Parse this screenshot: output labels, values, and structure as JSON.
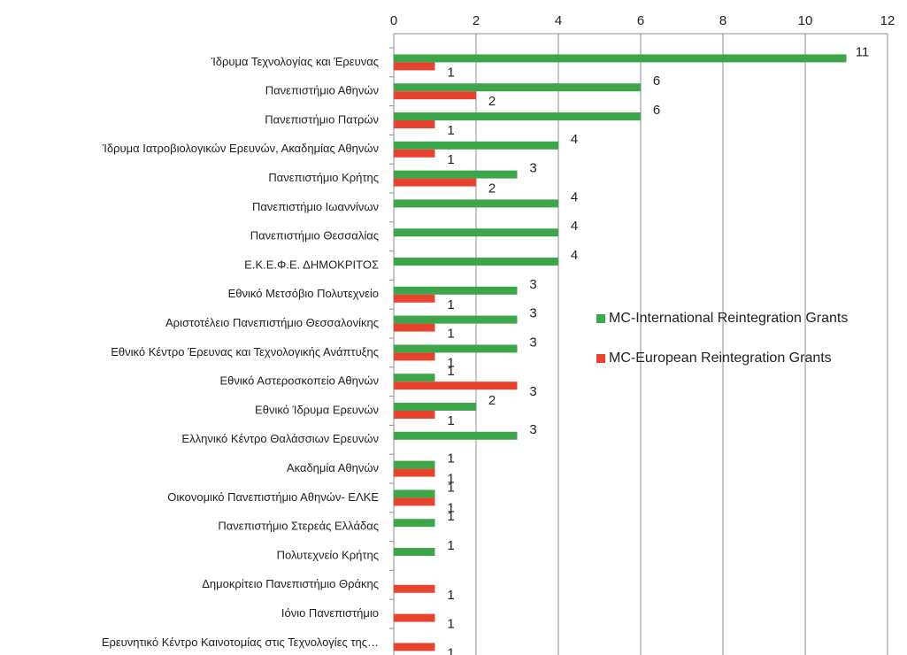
{
  "chart_data": {
    "type": "barh",
    "categories": [
      "Ίδρυμα Τεχνολογίας και Έρευνας",
      "Πανεπιστήμιο Αθηνών",
      "Πανεπιστήμιο Πατρών",
      "Ίδρυμα Ιατροβιολογικών Ερευνών, Ακαδημίας Αθηνών",
      "Πανεπιστήμιο Κρήτης",
      "Πανεπιστήμιο Ιωαννίνων",
      "Πανεπιστήμιο Θεσσαλίας",
      "Ε.Κ.Ε.Φ.Ε. ΔΗΜΟΚΡΙΤΟΣ",
      "Εθνικό Μετσόβιο Πολυτεχνείο",
      "Αριστοτέλειο Πανεπιστήμιο Θεσσαλονίκης",
      "Εθνικό Κέντρο Έρευνας και Τεχνολογικής Ανάπτυξης",
      "Εθνικό Αστεροσκοπείο Αθηνών",
      "Εθνικό Ίδρυμα Ερευνών",
      "Ελληνικό Κέντρο Θαλάσσιων Ερευνών",
      "Ακαδημία Αθηνών",
      "Οικονομικό Πανεπιστήμιο Αθηνών- ΕΛΚΕ",
      "Πανεπιστήμιο Στερεάς Ελλάδας",
      "Πολυτεχνείο Κρήτης",
      "Δημοκρίτειο Πανεπιστήμιο Θράκης",
      "Ιόνιο Πανεπιστήμιο",
      "Ερευνητικό Κέντρο Καινοτομίας στις Τεχνολογίες της…"
    ],
    "series": [
      {
        "name": "MC-International Reintegration Grants",
        "color": "#3ea64a",
        "values": [
          11,
          6,
          6,
          4,
          3,
          4,
          4,
          4,
          3,
          3,
          3,
          1,
          2,
          3,
          1,
          1,
          1,
          1,
          null,
          null,
          null
        ]
      },
      {
        "name": "MC-European Reintegration Grants",
        "color": "#e8432f",
        "values": [
          1,
          2,
          1,
          1,
          2,
          null,
          null,
          null,
          1,
          1,
          1,
          3,
          1,
          null,
          1,
          1,
          null,
          null,
          1,
          1,
          1
        ]
      }
    ],
    "xlim": [
      0,
      12
    ],
    "xticks": [
      0,
      2,
      4,
      6,
      8,
      10,
      12
    ],
    "grid": true,
    "legend": "right"
  }
}
